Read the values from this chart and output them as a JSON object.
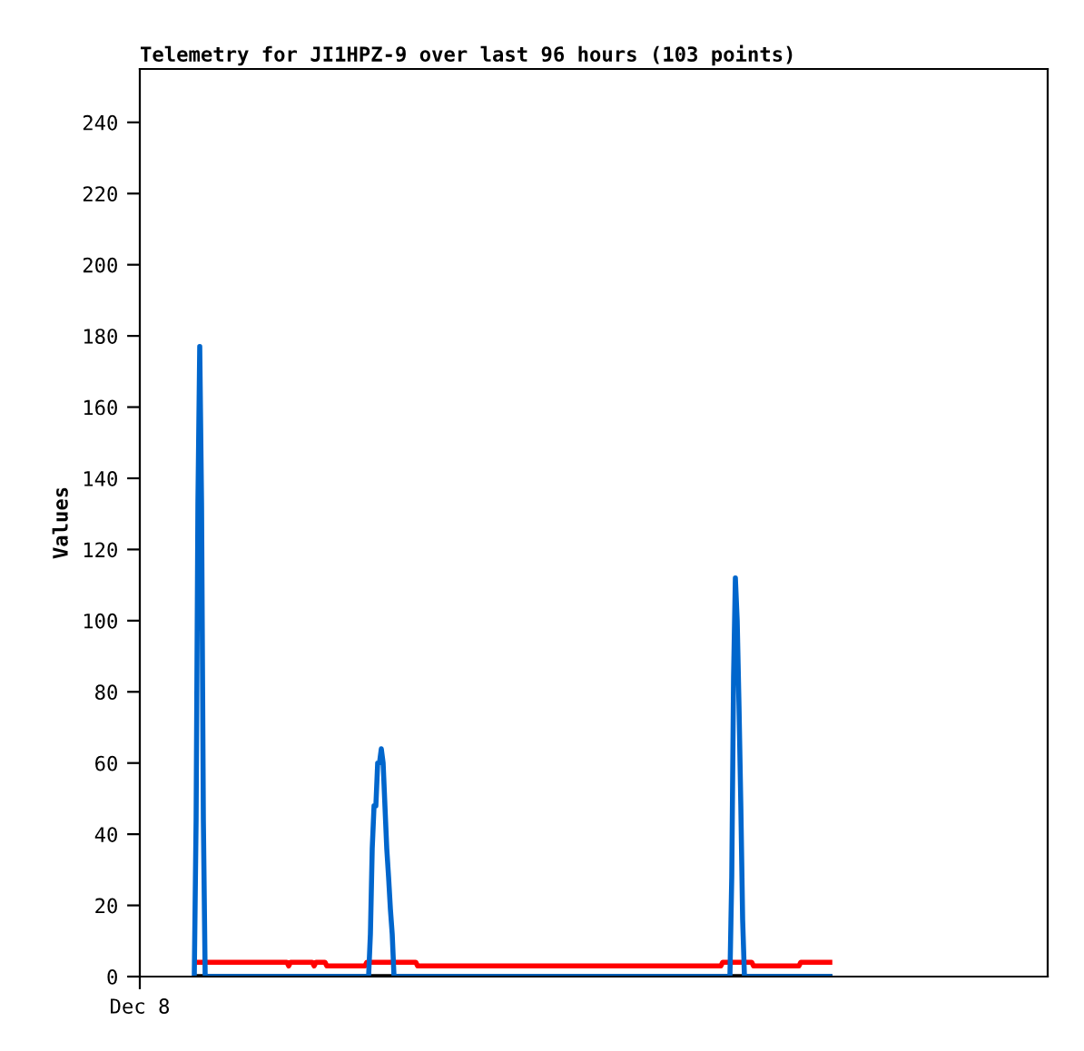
{
  "chart_data": {
    "type": "line",
    "title": "Telemetry for JI1HPZ-9 over last 96 hours (103 points)",
    "ylabel": "Values",
    "annotations": [
      "Dec 8"
    ],
    "ylim": [
      0,
      255
    ],
    "yticks": [
      0,
      20,
      40,
      60,
      80,
      100,
      120,
      140,
      160,
      180,
      200,
      220,
      240
    ],
    "grid": false,
    "legend": false,
    "categories": [
      null,
      null,
      null,
      null,
      null,
      null,
      null,
      null,
      null,
      null,
      null,
      null,
      null,
      null,
      null,
      null,
      null,
      null,
      null,
      null,
      null,
      null,
      null,
      null,
      null,
      null,
      null,
      null,
      null,
      null,
      null,
      null,
      null,
      null,
      null,
      null,
      null,
      null,
      null,
      null,
      null,
      null,
      null,
      null,
      null,
      null,
      null,
      null,
      null,
      null,
      null,
      null,
      null,
      null,
      null,
      null,
      null,
      null,
      null,
      null,
      null,
      null,
      null,
      null,
      null,
      null,
      null,
      null,
      null,
      null,
      null,
      null,
      null,
      null,
      null,
      null,
      null,
      null,
      null,
      null,
      null,
      null,
      null,
      null,
      null,
      null,
      null,
      null,
      null,
      null,
      null,
      null,
      null,
      null,
      null,
      null,
      null,
      null,
      null,
      null,
      null,
      null,
      null,
      null,
      null,
      null,
      null,
      null,
      null,
      null,
      null,
      null,
      null,
      null,
      null,
      null,
      null,
      null,
      null,
      null,
      null,
      null,
      null,
      null,
      null,
      null,
      null,
      null,
      null,
      null,
      null,
      null,
      null,
      null,
      null,
      null,
      null,
      null,
      null,
      null,
      null,
      null,
      null,
      null,
      null,
      null,
      null,
      null,
      null,
      null,
      null,
      null,
      null,
      null,
      null,
      null,
      null,
      null,
      null,
      null,
      null,
      null,
      null,
      null,
      null,
      null,
      null,
      null,
      null,
      null,
      null,
      null,
      null,
      null,
      null,
      null,
      null,
      null,
      null,
      null,
      null,
      null,
      null,
      null,
      null,
      null,
      null,
      null,
      null,
      null,
      null,
      null,
      null,
      null,
      null,
      null,
      null,
      null,
      null,
      null,
      null,
      null,
      null,
      null,
      null,
      null,
      null,
      null,
      null,
      null,
      null,
      null,
      null,
      null,
      null,
      null,
      null,
      null,
      null,
      null,
      null,
      null,
      null,
      null,
      null,
      null,
      null,
      null,
      null,
      null,
      null,
      null,
      null,
      null,
      null,
      null,
      null,
      null,
      null,
      null,
      null,
      null,
      null,
      null,
      null,
      null,
      null,
      null,
      null,
      null,
      null,
      null,
      null,
      null,
      null,
      null,
      null,
      null,
      null,
      null,
      null,
      null,
      null,
      null,
      null,
      null,
      null,
      null,
      null,
      null,
      null,
      null,
      null,
      null,
      null,
      null,
      null,
      null,
      null,
      null,
      null,
      null,
      null,
      null,
      null,
      null,
      null,
      null,
      null,
      null,
      null,
      null,
      null,
      null,
      null,
      null,
      null,
      null,
      null,
      null,
      null,
      null,
      null,
      null,
      null,
      null,
      null,
      null,
      null,
      null,
      null,
      null,
      null,
      null,
      null,
      null,
      null,
      null,
      null,
      null,
      null,
      null,
      null,
      null,
      null,
      null,
      null,
      null,
      null,
      null,
      null,
      null,
      null,
      null,
      null,
      null,
      null,
      null,
      null,
      null,
      null,
      null,
      null,
      null,
      null,
      null,
      null,
      null,
      null,
      null,
      null,
      null,
      null,
      null,
      null,
      null,
      null,
      null,
      null,
      null,
      null,
      null,
      null,
      null,
      null,
      null,
      null,
      null,
      null,
      null,
      null,
      null,
      null,
      null,
      null,
      null,
      null,
      null,
      null,
      null,
      null,
      null,
      null,
      null,
      null,
      null,
      null,
      null,
      null,
      null,
      null,
      null,
      null,
      null,
      null,
      null,
      null,
      null,
      null,
      null,
      null,
      null,
      null,
      null,
      null,
      null,
      null,
      null,
      null,
      null,
      null,
      null,
      null,
      null,
      null,
      null,
      null,
      null,
      null,
      null,
      null,
      null,
      null,
      null,
      null,
      null,
      null,
      null,
      null,
      null,
      null,
      null,
      null,
      null,
      null,
      null,
      null,
      null,
      null,
      null,
      null,
      null,
      null,
      null,
      null,
      null,
      null,
      null,
      null,
      null,
      null,
      null,
      null,
      null,
      null,
      null,
      null,
      null,
      null,
      null,
      null,
      null,
      null,
      null,
      null,
      null,
      null,
      null,
      null,
      null,
      null,
      null,
      null,
      null,
      null,
      null,
      null,
      null,
      null,
      null,
      null,
      null,
      null,
      null,
      null,
      null,
      null,
      null,
      null,
      null,
      null,
      null,
      null,
      null,
      null,
      null,
      null,
      null,
      null,
      null,
      null
    ],
    "series": [
      {
        "color": "#ff0000",
        "values": [
          null,
          null,
          null,
          null,
          null,
          null,
          null,
          null,
          null,
          null,
          null,
          null,
          null,
          null,
          null,
          null,
          null,
          null,
          null,
          null,
          null,
          null,
          null,
          null,
          null,
          null,
          null,
          null,
          null,
          null,
          null,
          null,
          4,
          4,
          4,
          4,
          4,
          4,
          4,
          4,
          4,
          4,
          4,
          4,
          4,
          4,
          4,
          4,
          4,
          4,
          4,
          4,
          4,
          4,
          4,
          4,
          4,
          4,
          4,
          4,
          4,
          4,
          4,
          4,
          4,
          4,
          4,
          4,
          4,
          4,
          4,
          4,
          4,
          4,
          4,
          4,
          4,
          4,
          4,
          4,
          4,
          4,
          3,
          4,
          4,
          4,
          4,
          4,
          4,
          4,
          4,
          4,
          4,
          4,
          4,
          4,
          3,
          4,
          4,
          4,
          4,
          4,
          4,
          3,
          3,
          3,
          3,
          3,
          3,
          3,
          3,
          3,
          3,
          3,
          3,
          3,
          3,
          3,
          3,
          3,
          3,
          3,
          3,
          3,
          3,
          4,
          4,
          4,
          4,
          4,
          4,
          4,
          4,
          4,
          4,
          4,
          4,
          4,
          4,
          4,
          4,
          4,
          4,
          4,
          4,
          4,
          4,
          4,
          4,
          4,
          4,
          4,
          4,
          3,
          3,
          3,
          3,
          3,
          3,
          3,
          3,
          3,
          3,
          3,
          3,
          3,
          3,
          3,
          3,
          3,
          3,
          3,
          3,
          3,
          3,
          3,
          3,
          3,
          3,
          3,
          3,
          3,
          3,
          3,
          3,
          3,
          3,
          3,
          3,
          3,
          3,
          3,
          3,
          3,
          3,
          3,
          3,
          3,
          3,
          3,
          3,
          3,
          3,
          3,
          3,
          3,
          3,
          3,
          3,
          3,
          3,
          3,
          3,
          3,
          3,
          3,
          3,
          3,
          3,
          3,
          3,
          3,
          3,
          3,
          3,
          3,
          3,
          3,
          3,
          3,
          3,
          3,
          3,
          3,
          3,
          3,
          3,
          3,
          3,
          3,
          3,
          3,
          3,
          3,
          3,
          3,
          3,
          3,
          3,
          3,
          3,
          3,
          3,
          3,
          3,
          3,
          3,
          3,
          3,
          3,
          3,
          3,
          3,
          3,
          3,
          3,
          3,
          3,
          3,
          3,
          3,
          3,
          3,
          3,
          3,
          3,
          3,
          3,
          3,
          3,
          3,
          3,
          3,
          3,
          3,
          3,
          3,
          3,
          3,
          3,
          3,
          3,
          3,
          3,
          3,
          3,
          3,
          3,
          3,
          3,
          3,
          3,
          3,
          3,
          3,
          3,
          3,
          3,
          3,
          3,
          3,
          3,
          3,
          3,
          3,
          3,
          3,
          3,
          3,
          3,
          3,
          4,
          4,
          4,
          4,
          4,
          4,
          4,
          4,
          4,
          4,
          4,
          4,
          4,
          4,
          4,
          4,
          4,
          3,
          3,
          3,
          3,
          3,
          3,
          3,
          3,
          3,
          3,
          3,
          3,
          3,
          3,
          3,
          3,
          3,
          3,
          3,
          3,
          3,
          3,
          3,
          3,
          3,
          3,
          4,
          4,
          4,
          4,
          4,
          4,
          4,
          4,
          4,
          4,
          4,
          4,
          4,
          4,
          4,
          4,
          4,
          null,
          null,
          null,
          null,
          null,
          null,
          null,
          null,
          null,
          null,
          null,
          null,
          null,
          null,
          null,
          null,
          null,
          null,
          null,
          null,
          null,
          null,
          null,
          null,
          null,
          null,
          null,
          null,
          null,
          null,
          null,
          null,
          null,
          null,
          null,
          null,
          null,
          null,
          null,
          null,
          null,
          null,
          null,
          null,
          null,
          null,
          null,
          null,
          null,
          null,
          null,
          null,
          null,
          null,
          null,
          null,
          null,
          null,
          null,
          null,
          null,
          null,
          null,
          null,
          null,
          null,
          null,
          null,
          null,
          null,
          null,
          null,
          null,
          null,
          null,
          null,
          null,
          null,
          null,
          null,
          null,
          null,
          null,
          null,
          null,
          null,
          null,
          null,
          null,
          null,
          null,
          null,
          null,
          null,
          null,
          null,
          null,
          null,
          null,
          null,
          null,
          null,
          null,
          null,
          null,
          null,
          null,
          null,
          null,
          null,
          null,
          null,
          null,
          null,
          null,
          null,
          null,
          null,
          null,
          null
        ]
      },
      {
        "color": "#000000",
        "values": [
          null,
          null,
          null,
          null,
          null,
          null,
          null,
          null,
          null,
          null,
          null,
          null,
          null,
          null,
          null,
          null,
          null,
          null,
          null,
          null,
          null,
          null,
          null,
          null,
          null,
          null,
          null,
          null,
          null,
          null,
          null,
          0,
          0,
          0,
          0,
          0,
          0,
          0,
          0,
          0,
          0,
          0,
          0,
          0,
          0,
          0,
          0,
          0,
          0,
          0,
          0,
          0,
          0,
          0,
          0,
          0,
          0,
          0,
          0,
          0,
          0,
          0,
          0,
          0,
          0,
          0,
          0,
          0,
          0,
          0,
          0,
          0,
          0,
          0,
          0,
          0,
          0,
          0,
          0,
          0,
          0,
          0,
          0,
          0,
          0,
          0,
          0,
          0,
          0,
          0,
          0,
          0,
          0,
          0,
          0,
          0,
          0,
          0,
          0,
          0,
          0,
          0,
          0,
          0,
          0,
          0,
          0,
          0,
          0,
          0,
          0,
          0,
          0,
          0,
          0,
          0,
          0,
          0,
          0,
          0,
          0,
          0,
          0,
          0,
          0,
          0,
          0,
          0,
          0,
          0,
          0,
          0,
          0,
          0,
          0,
          0,
          0,
          0,
          0,
          0,
          0,
          0,
          0,
          0,
          0,
          0,
          0,
          0,
          0,
          0,
          0,
          0,
          0,
          0,
          0,
          0,
          0,
          0,
          0,
          0,
          0,
          0,
          0,
          0,
          0,
          0,
          0,
          0,
          0,
          0,
          0,
          0,
          0,
          0,
          0,
          0,
          0,
          0,
          0,
          0,
          0,
          0,
          0,
          0,
          0,
          0,
          0,
          0,
          0,
          0,
          0,
          0,
          0,
          0,
          0,
          0,
          0,
          0,
          0,
          0,
          0,
          0,
          0,
          0,
          0,
          0,
          0,
          0,
          0,
          0,
          0,
          0,
          0,
          0,
          0,
          0,
          0,
          0,
          0,
          0,
          0,
          0,
          0,
          0,
          0,
          0,
          0,
          0,
          0,
          0,
          0,
          0,
          0,
          0,
          0,
          0,
          0,
          0,
          0,
          0,
          0,
          0,
          0,
          0,
          0,
          0,
          0,
          0,
          0,
          0,
          0,
          0,
          0,
          0,
          0,
          0,
          0,
          0,
          0,
          0,
          0,
          0,
          0,
          0,
          0,
          0,
          0,
          0,
          0,
          0,
          0,
          0,
          0,
          0,
          0,
          0,
          0,
          0,
          0,
          0,
          0,
          0,
          0,
          0,
          0,
          0,
          0,
          0,
          0,
          0,
          0,
          0,
          0,
          0,
          0,
          0,
          0,
          0,
          0,
          0,
          0,
          0,
          0,
          0,
          0,
          0,
          0,
          0,
          0,
          0,
          0,
          0,
          0,
          0,
          0,
          0,
          0,
          0,
          0,
          0,
          0,
          0,
          0,
          0,
          0,
          0,
          0,
          0,
          0,
          0,
          0,
          0,
          0,
          0,
          0,
          0,
          0,
          0,
          0,
          0,
          0,
          0,
          0,
          0,
          0,
          0,
          0,
          0,
          0,
          0,
          0,
          0,
          0,
          0,
          0,
          0,
          0,
          0,
          0,
          0,
          0,
          0,
          0,
          0,
          0,
          0,
          0,
          0,
          0,
          0,
          0,
          0,
          0,
          0,
          0,
          0,
          0,
          0,
          0,
          0,
          0,
          null,
          null,
          null,
          null,
          null,
          null,
          null,
          null,
          null,
          null,
          null,
          null,
          null,
          null,
          null,
          null,
          null,
          null,
          null,
          null,
          null,
          null,
          null,
          null,
          null,
          null,
          null,
          null,
          null,
          null,
          null,
          null,
          null,
          null,
          null,
          null,
          null,
          null,
          null,
          null,
          null,
          null,
          null,
          null,
          null,
          null,
          null,
          null,
          null,
          null,
          null,
          null,
          null,
          null,
          null,
          null,
          null,
          null,
          null,
          null,
          null,
          null,
          null,
          null,
          null,
          null,
          null,
          null,
          null,
          null,
          null,
          null,
          null,
          null,
          null,
          null,
          null,
          null,
          null,
          null,
          null,
          null,
          null,
          null,
          null,
          null,
          null,
          null,
          null,
          null,
          null,
          null,
          null,
          null,
          null,
          null,
          null,
          null,
          null,
          null,
          null,
          null,
          null,
          null,
          null,
          null,
          null,
          null,
          null,
          null,
          null,
          null,
          null,
          null,
          null,
          null,
          null,
          null,
          null,
          null
        ]
      },
      {
        "color": "#0066cc",
        "values": [
          null,
          null,
          null,
          null,
          null,
          null,
          null,
          null,
          null,
          null,
          null,
          null,
          null,
          null,
          null,
          null,
          null,
          null,
          null,
          null,
          null,
          null,
          null,
          null,
          null,
          null,
          null,
          null,
          null,
          null,
          0,
          44,
          133,
          177,
          133,
          44,
          0,
          0,
          0,
          0,
          0,
          0,
          0,
          0,
          0,
          0,
          0,
          0,
          0,
          0,
          0,
          0,
          0,
          0,
          0,
          0,
          0,
          0,
          0,
          0,
          0,
          0,
          0,
          0,
          0,
          0,
          0,
          0,
          0,
          0,
          0,
          0,
          0,
          0,
          0,
          0,
          0,
          0,
          0,
          0,
          0,
          0,
          0,
          0,
          0,
          0,
          0,
          0,
          0,
          0,
          0,
          0,
          0,
          0,
          0,
          0,
          0,
          0,
          0,
          0,
          0,
          0,
          0,
          0,
          0,
          0,
          0,
          0,
          0,
          0,
          0,
          0,
          0,
          0,
          0,
          0,
          0,
          0,
          0,
          0,
          0,
          0,
          0,
          0,
          0,
          0,
          0,
          12,
          36,
          48,
          48,
          60,
          60,
          64,
          60,
          48,
          36,
          28,
          19,
          12,
          0,
          0,
          0,
          0,
          0,
          0,
          0,
          0,
          0,
          0,
          0,
          0,
          0,
          0,
          0,
          0,
          0,
          0,
          0,
          0,
          0,
          0,
          0,
          0,
          0,
          0,
          0,
          0,
          0,
          0,
          0,
          0,
          0,
          0,
          0,
          0,
          0,
          0,
          0,
          0,
          0,
          0,
          0,
          0,
          0,
          0,
          0,
          0,
          0,
          0,
          0,
          0,
          0,
          0,
          0,
          0,
          0,
          0,
          0,
          0,
          0,
          0,
          0,
          0,
          0,
          0,
          0,
          0,
          0,
          0,
          0,
          0,
          0,
          0,
          0,
          0,
          0,
          0,
          0,
          0,
          0,
          0,
          0,
          0,
          0,
          0,
          0,
          0,
          0,
          0,
          0,
          0,
          0,
          0,
          0,
          0,
          0,
          0,
          0,
          0,
          0,
          0,
          0,
          0,
          0,
          0,
          0,
          0,
          0,
          0,
          0,
          0,
          0,
          0,
          0,
          0,
          0,
          0,
          0,
          0,
          0,
          0,
          0,
          0,
          0,
          0,
          0,
          0,
          0,
          0,
          0,
          0,
          0,
          0,
          0,
          0,
          0,
          0,
          0,
          0,
          0,
          0,
          0,
          0,
          0,
          0,
          0,
          0,
          0,
          0,
          0,
          0,
          0,
          0,
          0,
          0,
          0,
          0,
          0,
          0,
          0,
          0,
          0,
          0,
          0,
          0,
          0,
          0,
          0,
          0,
          0,
          0,
          0,
          0,
          0,
          0,
          0,
          0,
          0,
          0,
          0,
          0,
          0,
          0,
          0,
          0,
          28,
          84,
          112,
          100,
          76,
          48,
          16,
          0,
          0,
          0,
          0,
          0,
          0,
          0,
          0,
          0,
          0,
          0,
          0,
          0,
          0,
          0,
          0,
          0,
          0,
          0,
          0,
          0,
          0,
          0,
          0,
          0,
          0,
          0,
          0,
          0,
          0,
          0,
          0,
          0,
          0,
          0,
          0,
          0,
          0,
          0,
          0,
          0,
          0,
          0,
          0,
          0,
          0,
          0,
          0,
          null,
          null,
          null,
          null,
          null,
          null,
          null,
          null,
          null,
          null,
          null,
          null,
          null,
          null,
          null,
          null,
          null,
          null,
          null,
          null,
          null,
          null,
          null,
          null,
          null,
          null,
          null,
          null,
          null,
          null,
          null,
          null,
          null,
          null,
          null,
          null,
          null,
          null,
          null,
          null,
          null,
          null,
          null,
          null,
          null,
          null,
          null,
          null,
          null,
          null,
          null,
          null,
          null,
          null,
          null,
          null,
          null,
          null,
          null,
          null,
          null,
          null,
          null,
          null,
          null,
          null,
          null,
          null,
          null,
          null,
          null,
          null,
          null,
          null,
          null,
          null,
          null,
          null,
          null,
          null,
          null,
          null,
          null,
          null,
          null,
          null,
          null,
          null,
          null,
          null,
          null,
          null,
          null,
          null,
          null,
          null,
          null,
          null,
          null,
          null,
          null,
          null,
          null,
          null,
          null,
          null,
          null,
          null,
          null,
          null,
          null,
          null,
          null,
          null,
          null,
          null,
          null,
          null,
          null,
          null
        ]
      }
    ]
  }
}
